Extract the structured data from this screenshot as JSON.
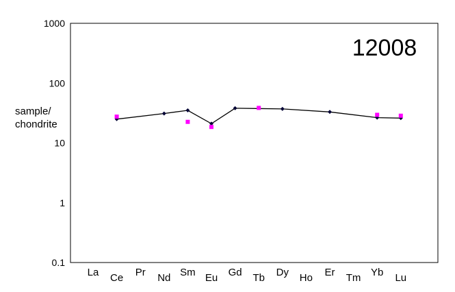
{
  "chart_data": {
    "type": "line",
    "title": "12008",
    "ylabel_lines": [
      "sample/",
      "chondrite"
    ],
    "yscale": "log",
    "ylim": [
      0.1,
      1000
    ],
    "yticks": [
      "0.1",
      "1",
      "10",
      "100",
      "1000"
    ],
    "grid": false,
    "categories": [
      "La",
      "Ce",
      "Pr",
      "Nd",
      "Sm",
      "Eu",
      "Gd",
      "Tb",
      "Dy",
      "Ho",
      "Er",
      "Tm",
      "Yb",
      "Lu"
    ],
    "series": [
      {
        "style": "line-with-diamond-markers",
        "color": "#000033",
        "points": [
          {
            "x": "Ce",
            "y": 25
          },
          {
            "x": "Nd",
            "y": 31
          },
          {
            "x": "Sm",
            "y": 35
          },
          {
            "x": "Eu",
            "y": 21
          },
          {
            "x": "Gd",
            "y": 38
          },
          {
            "x": "Dy",
            "y": 37
          },
          {
            "x": "Er",
            "y": 33
          },
          {
            "x": "Yb",
            "y": 26.5
          },
          {
            "x": "Lu",
            "y": 26
          }
        ]
      },
      {
        "style": "square-markers",
        "color": "#ff00ff",
        "points": [
          {
            "x": "Ce",
            "y": 27.5
          },
          {
            "x": "Sm",
            "y": 22.5
          },
          {
            "x": "Eu",
            "y": 18.5
          },
          {
            "x": "Tb",
            "y": 38.5
          },
          {
            "x": "Yb",
            "y": 29.5
          },
          {
            "x": "Lu",
            "y": 28.5
          }
        ]
      }
    ]
  }
}
